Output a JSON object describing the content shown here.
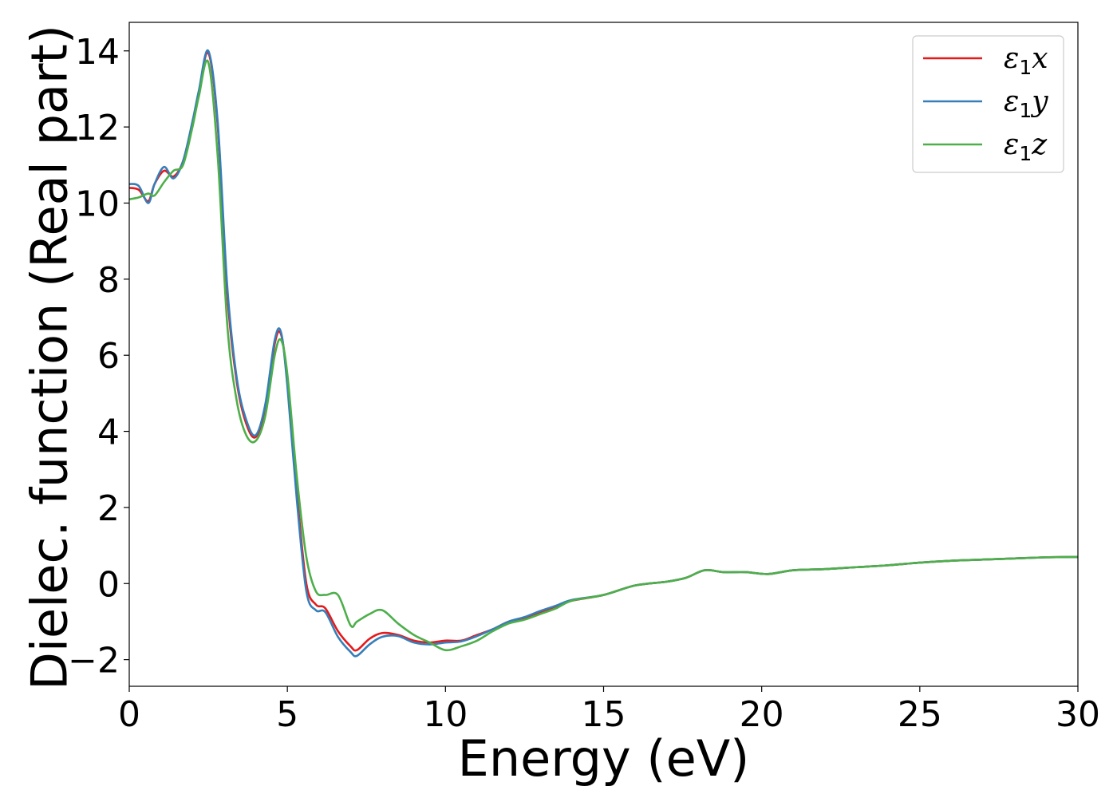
{
  "chart_data": {
    "type": "line",
    "title": "",
    "xlabel": "Energy (eV)",
    "ylabel": "Dielec. function (Real part)",
    "xlim": [
      0,
      30
    ],
    "ylim": [
      -2.7,
      14.75
    ],
    "xticks": [
      0,
      5,
      10,
      15,
      20,
      25,
      30
    ],
    "xtick_labels": [
      "0",
      "5",
      "10",
      "15",
      "20",
      "25",
      "30"
    ],
    "yticks": [
      -2,
      0,
      2,
      4,
      6,
      8,
      10,
      12,
      14
    ],
    "ytick_labels": [
      "−2",
      "0",
      "2",
      "4",
      "6",
      "8",
      "10",
      "12",
      "14"
    ],
    "grid": false,
    "legend_position": "top-right",
    "series": [
      {
        "name": "ε₁x",
        "label_base": "ε",
        "label_sub": "1",
        "label_var": "x",
        "color": "#e41a1c",
        "x": [
          0,
          0.3,
          0.6,
          0.8,
          1.1,
          1.4,
          1.7,
          2.0,
          2.2,
          2.5,
          2.8,
          3.1,
          3.4,
          3.7,
          4.0,
          4.3,
          4.6,
          4.8,
          5.0,
          5.3,
          5.6,
          5.9,
          6.2,
          6.6,
          7.0,
          7.2,
          7.6,
          8.0,
          8.5,
          9.0,
          9.5,
          10.0,
          10.5,
          11.0,
          11.5,
          12.0,
          12.5,
          13.0,
          13.5,
          14.0,
          15.0,
          16.0,
          17.0,
          17.6,
          18.2,
          18.8,
          19.5,
          20.2,
          21.0,
          22.0,
          23.0,
          24.0,
          25.0,
          26.0,
          27.0,
          28.0,
          29.0,
          30.0
        ],
        "y": [
          10.4,
          10.35,
          10.05,
          10.5,
          10.85,
          10.7,
          11.1,
          12.1,
          12.9,
          13.95,
          12.0,
          7.6,
          5.3,
          4.2,
          3.85,
          4.6,
          6.3,
          6.55,
          5.3,
          2.4,
          0.0,
          -0.55,
          -0.65,
          -1.25,
          -1.65,
          -1.75,
          -1.45,
          -1.3,
          -1.35,
          -1.5,
          -1.55,
          -1.5,
          -1.5,
          -1.35,
          -1.2,
          -1.0,
          -0.9,
          -0.75,
          -0.6,
          -0.45,
          -0.3,
          -0.05,
          0.05,
          0.15,
          0.35,
          0.3,
          0.3,
          0.25,
          0.35,
          0.38,
          0.43,
          0.48,
          0.55,
          0.6,
          0.63,
          0.66,
          0.69,
          0.7
        ]
      },
      {
        "name": "ε₁y",
        "label_base": "ε",
        "label_sub": "1",
        "label_var": "y",
        "color": "#377eb8",
        "x": [
          0,
          0.3,
          0.6,
          0.8,
          1.1,
          1.4,
          1.7,
          2.0,
          2.2,
          2.5,
          2.8,
          3.1,
          3.4,
          3.7,
          4.0,
          4.3,
          4.6,
          4.8,
          5.0,
          5.3,
          5.6,
          5.9,
          6.2,
          6.6,
          7.0,
          7.2,
          7.6,
          8.0,
          8.5,
          9.0,
          9.5,
          10.0,
          10.5,
          11.0,
          11.5,
          12.0,
          12.5,
          13.0,
          13.5,
          14.0,
          15.0,
          16.0,
          17.0,
          17.6,
          18.2,
          18.8,
          19.5,
          20.2,
          21.0,
          22.0,
          23.0,
          24.0,
          25.0,
          26.0,
          27.0,
          28.0,
          29.0,
          30.0
        ],
        "y": [
          10.5,
          10.45,
          10.0,
          10.5,
          10.95,
          10.65,
          11.1,
          12.15,
          12.95,
          14.0,
          12.1,
          7.8,
          5.4,
          4.3,
          3.9,
          4.7,
          6.4,
          6.6,
          5.2,
          2.2,
          -0.2,
          -0.7,
          -0.75,
          -1.4,
          -1.8,
          -1.9,
          -1.6,
          -1.4,
          -1.38,
          -1.55,
          -1.6,
          -1.55,
          -1.52,
          -1.38,
          -1.2,
          -1.0,
          -0.88,
          -0.72,
          -0.58,
          -0.43,
          -0.3,
          -0.05,
          0.05,
          0.15,
          0.35,
          0.3,
          0.3,
          0.25,
          0.35,
          0.38,
          0.43,
          0.48,
          0.55,
          0.6,
          0.63,
          0.66,
          0.69,
          0.7
        ]
      },
      {
        "name": "ε₁z",
        "label_base": "ε",
        "label_sub": "1",
        "label_var": "z",
        "color": "#4daf4a",
        "x": [
          0,
          0.3,
          0.6,
          0.8,
          1.1,
          1.4,
          1.7,
          2.0,
          2.2,
          2.5,
          2.8,
          3.1,
          3.4,
          3.7,
          4.0,
          4.3,
          4.6,
          4.8,
          5.0,
          5.3,
          5.6,
          5.9,
          6.2,
          6.6,
          7.0,
          7.2,
          7.6,
          8.0,
          8.5,
          9.0,
          9.5,
          10.0,
          10.5,
          11.0,
          11.5,
          12.0,
          12.5,
          13.0,
          13.5,
          14.0,
          15.0,
          16.0,
          17.0,
          17.6,
          18.2,
          18.8,
          19.5,
          20.2,
          21.0,
          22.0,
          23.0,
          24.0,
          25.0,
          26.0,
          27.0,
          28.0,
          29.0,
          30.0
        ],
        "y": [
          10.1,
          10.15,
          10.25,
          10.2,
          10.55,
          10.85,
          11.0,
          12.0,
          12.8,
          13.7,
          11.2,
          6.8,
          4.8,
          3.9,
          3.75,
          4.4,
          6.0,
          6.4,
          5.5,
          2.8,
          0.7,
          -0.2,
          -0.3,
          -0.3,
          -1.1,
          -1.0,
          -0.8,
          -0.7,
          -1.05,
          -1.35,
          -1.55,
          -1.75,
          -1.65,
          -1.5,
          -1.25,
          -1.05,
          -0.95,
          -0.8,
          -0.65,
          -0.45,
          -0.3,
          -0.05,
          0.05,
          0.15,
          0.35,
          0.3,
          0.3,
          0.25,
          0.35,
          0.38,
          0.43,
          0.48,
          0.55,
          0.6,
          0.63,
          0.66,
          0.69,
          0.7
        ]
      }
    ]
  }
}
